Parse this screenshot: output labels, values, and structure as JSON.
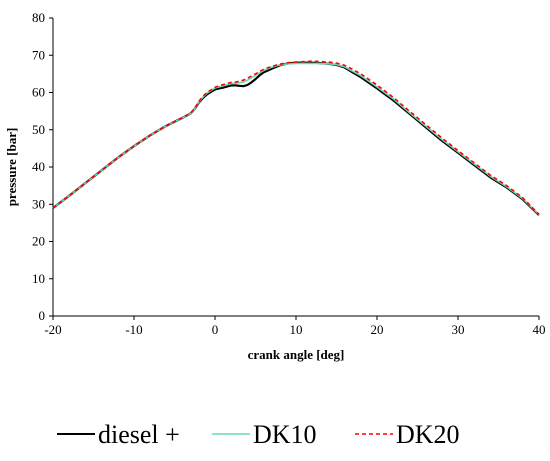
{
  "chart_data": {
    "type": "line",
    "title": "",
    "xlabel": "crank angle [deg]",
    "ylabel": "pressure [bar]",
    "xlim": [
      -20,
      40
    ],
    "ylim": [
      0,
      80
    ],
    "xticks": [
      -20,
      -10,
      0,
      10,
      20,
      30,
      40
    ],
    "yticks": [
      0,
      10,
      20,
      30,
      40,
      50,
      60,
      70,
      80
    ],
    "grid": false,
    "legend_position": "bottom",
    "series": [
      {
        "name": "diesel +",
        "color": "#000000",
        "style": "solid",
        "x": [
          -20,
          -18,
          -16,
          -14,
          -12,
          -10,
          -8,
          -6,
          -4,
          -3,
          -2.5,
          -2,
          -1.5,
          -1,
          -0.5,
          0,
          0.5,
          1,
          1.5,
          2,
          2.5,
          3,
          3.5,
          4,
          4.5,
          5,
          5.5,
          6,
          7,
          8,
          9,
          10,
          11,
          12,
          13,
          14,
          15,
          16,
          17,
          18,
          20,
          22,
          24,
          26,
          28,
          30,
          32,
          34,
          36,
          38,
          40
        ],
        "y": [
          29,
          32.3,
          35.7,
          39.1,
          42.5,
          45.6,
          48.5,
          51.1,
          53.2,
          54.4,
          55.6,
          57.3,
          58.5,
          59.5,
          60.2,
          60.8,
          61.1,
          61.3,
          61.6,
          61.9,
          61.9,
          61.8,
          61.7,
          62,
          62.7,
          63.6,
          64.6,
          65.4,
          66.4,
          67.3,
          67.8,
          68,
          68,
          68,
          67.9,
          67.7,
          67.4,
          66.7,
          65.4,
          64.1,
          61.1,
          57.9,
          54.3,
          50.7,
          47.1,
          43.8,
          40.5,
          37.2,
          34.5,
          31.3,
          27.1
        ]
      },
      {
        "name": "DK10",
        "color": "#66d9b8",
        "style": "solid",
        "x": [
          -20,
          -18,
          -16,
          -14,
          -12,
          -10,
          -8,
          -6,
          -4,
          -3,
          -2.5,
          -2,
          -1.5,
          -1,
          -0.5,
          0,
          0.5,
          1,
          1.5,
          2,
          2.5,
          3,
          3.5,
          4,
          4.5,
          5,
          5.5,
          6,
          7,
          8,
          9,
          10,
          11,
          12,
          13,
          14,
          15,
          16,
          17,
          18,
          20,
          22,
          24,
          26,
          28,
          30,
          32,
          34,
          36,
          38,
          40
        ],
        "y": [
          29,
          32.3,
          35.7,
          39.1,
          42.5,
          45.6,
          48.5,
          51.1,
          53.2,
          54.4,
          55.6,
          57.4,
          58.7,
          59.8,
          60.5,
          61.2,
          61.5,
          61.8,
          62.1,
          62.4,
          62.5,
          62.6,
          62.8,
          63.3,
          63.9,
          64.6,
          65.3,
          65.9,
          66.8,
          67.4,
          67.7,
          67.8,
          67.8,
          67.8,
          67.8,
          67.7,
          67.5,
          66.9,
          65.7,
          64.5,
          61.5,
          58.3,
          54.6,
          51,
          47.4,
          44.1,
          40.8,
          37.5,
          34.7,
          31.5,
          27.2
        ]
      },
      {
        "name": "DK20",
        "color": "#ff0000",
        "style": "dashed",
        "x": [
          -20,
          -18,
          -16,
          -14,
          -12,
          -10,
          -8,
          -6,
          -4,
          -3,
          -2.5,
          -2,
          -1.5,
          -1,
          -0.5,
          0,
          0.5,
          1,
          1.5,
          2,
          2.5,
          3,
          3.5,
          4,
          4.5,
          5,
          5.5,
          6,
          7,
          8,
          9,
          10,
          11,
          12,
          13,
          14,
          15,
          16,
          17,
          18,
          20,
          22,
          24,
          26,
          28,
          30,
          32,
          34,
          36,
          38,
          40
        ],
        "y": [
          29,
          32.3,
          35.7,
          39.1,
          42.5,
          45.6,
          48.5,
          51.1,
          53.3,
          54.5,
          55.8,
          57.6,
          58.9,
          60,
          60.7,
          61.4,
          61.8,
          62.1,
          62.4,
          62.7,
          62.8,
          63,
          63.3,
          63.8,
          64.4,
          65,
          65.6,
          66.2,
          67,
          67.6,
          68,
          68.2,
          68.3,
          68.4,
          68.3,
          68.2,
          67.9,
          67.3,
          66.2,
          65,
          62,
          58.7,
          55,
          51.4,
          47.8,
          44.4,
          41.1,
          37.8,
          35,
          31.7,
          27.3
        ]
      }
    ]
  }
}
